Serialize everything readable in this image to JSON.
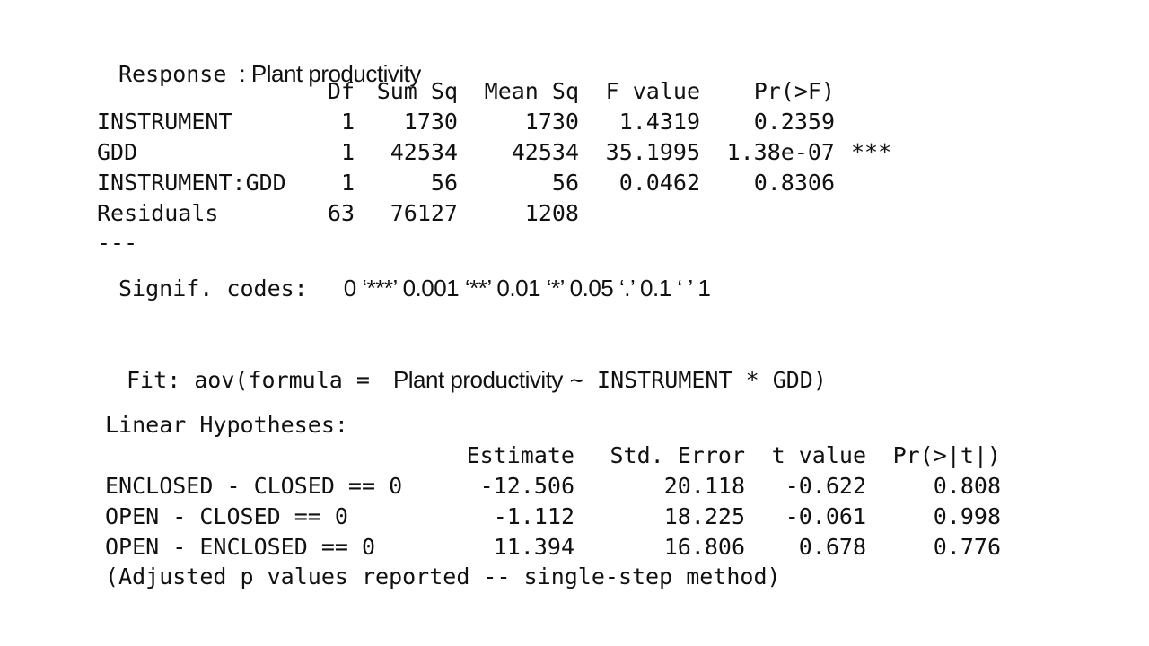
{
  "anova": {
    "response_label": "Response",
    "response_value": ": Plant productivity",
    "headers": {
      "df": "Df",
      "sum_sq": "Sum Sq",
      "mean_sq": "Mean Sq",
      "f_value": "F value",
      "pr": "Pr(>F)"
    },
    "rows": [
      {
        "term": "INSTRUMENT",
        "df": "1",
        "sum_sq": "1730",
        "mean_sq": "1730",
        "f_value": "1.4319",
        "pr": "0.2359",
        "stars": ""
      },
      {
        "term": "GDD",
        "df": "1",
        "sum_sq": "42534",
        "mean_sq": "42534",
        "f_value": "35.1995",
        "pr": "1.38e-07",
        "stars": "***"
      },
      {
        "term": "INSTRUMENT:GDD",
        "df": "1",
        "sum_sq": "56",
        "mean_sq": "56",
        "f_value": "0.0462",
        "pr": "0.8306",
        "stars": ""
      },
      {
        "term": "Residuals",
        "df": "63",
        "sum_sq": "76127",
        "mean_sq": "1208",
        "f_value": "",
        "pr": "",
        "stars": ""
      }
    ],
    "separator": "---",
    "signif_label": "Signif. codes:",
    "signif_codes": "0 ‘***’ 0.001 ‘**’ 0.01 ‘*’ 0.05 ‘.’ 0.1 ‘ ’ 1"
  },
  "tukey": {
    "fit_prefix": "Fit: aov(formula =",
    "fit_response": "Plant productivity",
    "fit_suffix": "~ INSTRUMENT * GDD)",
    "hypotheses_title": "Linear Hypotheses:",
    "headers": {
      "estimate": "Estimate",
      "std_error": "Std. Error",
      "t_value": "t value",
      "p": "Pr(>|t|)"
    },
    "rows": [
      {
        "label": "ENCLOSED - CLOSED == 0",
        "estimate": "-12.506",
        "std_error": "20.118",
        "t_value": "-0.622",
        "p": "0.808"
      },
      {
        "label": "OPEN - CLOSED == 0",
        "estimate": "-1.112",
        "std_error": "18.225",
        "t_value": "-0.061",
        "p": "0.998"
      },
      {
        "label": "OPEN - ENCLOSED == 0",
        "estimate": "11.394",
        "std_error": "16.806",
        "t_value": "0.678",
        "p": "0.776"
      }
    ],
    "footnote": "(Adjusted p values reported -- single-step method)"
  }
}
